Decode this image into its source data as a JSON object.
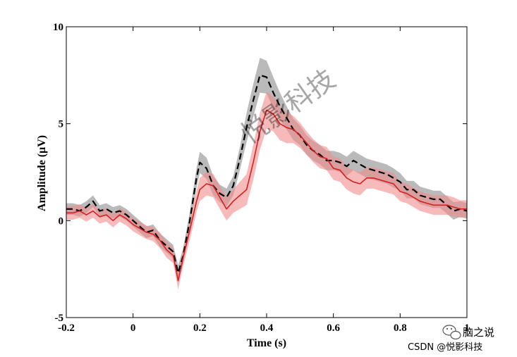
{
  "chart_data": {
    "type": "line",
    "xlabel": "Time (s)",
    "ylabel": "Amplitude (μV)",
    "xlim": [
      -0.2,
      1.0
    ],
    "ylim": [
      -5,
      10
    ],
    "xticks": [
      -0.2,
      0,
      0.2,
      0.4,
      0.6,
      0.8,
      1
    ],
    "xtick_labels": [
      "-0.2",
      "0",
      "0.2",
      "0.4",
      "0.6",
      "0.8",
      "1"
    ],
    "yticks": [
      -5,
      0,
      5,
      10
    ],
    "ytick_labels": [
      "-5",
      "0",
      "5",
      "10"
    ],
    "grid": false,
    "legend": "none",
    "series": [
      {
        "style": "dashed",
        "color": "#000000",
        "band_color": "#8c8c8c",
        "x": [
          -0.2,
          -0.18,
          -0.16,
          -0.14,
          -0.12,
          -0.1,
          -0.08,
          -0.06,
          -0.04,
          -0.02,
          0,
          0.02,
          0.04,
          0.06,
          0.08,
          0.1,
          0.12,
          0.135,
          0.15,
          0.17,
          0.19,
          0.2,
          0.22,
          0.24,
          0.26,
          0.28,
          0.3,
          0.32,
          0.34,
          0.36,
          0.38,
          0.4,
          0.42,
          0.44,
          0.46,
          0.48,
          0.5,
          0.52,
          0.54,
          0.56,
          0.58,
          0.6,
          0.62,
          0.64,
          0.66,
          0.68,
          0.7,
          0.72,
          0.74,
          0.76,
          0.78,
          0.8,
          0.82,
          0.84,
          0.86,
          0.88,
          0.9,
          0.92,
          0.94,
          0.96,
          0.98,
          1.0
        ],
        "y": [
          0.6,
          0.6,
          0.5,
          0.7,
          1.0,
          0.5,
          0.6,
          0.4,
          0.5,
          0.3,
          0.0,
          -0.3,
          -0.6,
          -0.5,
          -1.0,
          -1.3,
          -1.6,
          -2.7,
          -1.8,
          0.0,
          2.2,
          3.0,
          2.7,
          1.8,
          1.4,
          1.2,
          1.8,
          3.2,
          4.8,
          6.2,
          7.5,
          7.4,
          6.6,
          5.9,
          5.3,
          4.7,
          4.4,
          3.9,
          3.6,
          3.4,
          3.1,
          3.1,
          3.0,
          2.8,
          3.1,
          2.9,
          2.7,
          2.6,
          2.5,
          2.4,
          2.2,
          2.0,
          1.6,
          1.6,
          1.3,
          1.2,
          1.1,
          1.1,
          0.8,
          0.5,
          0.6,
          0.5
        ],
        "err": [
          0.3,
          0.3,
          0.3,
          0.3,
          0.3,
          0.3,
          0.3,
          0.3,
          0.3,
          0.3,
          0.3,
          0.3,
          0.3,
          0.3,
          0.35,
          0.35,
          0.35,
          0.4,
          0.4,
          0.45,
          0.5,
          0.55,
          0.55,
          0.5,
          0.45,
          0.45,
          0.5,
          0.6,
          0.75,
          0.85,
          0.9,
          0.85,
          0.8,
          0.7,
          0.6,
          0.55,
          0.5,
          0.5,
          0.5,
          0.5,
          0.5,
          0.5,
          0.5,
          0.5,
          0.5,
          0.5,
          0.5,
          0.5,
          0.5,
          0.5,
          0.5,
          0.45,
          0.45,
          0.45,
          0.45,
          0.45,
          0.45,
          0.45,
          0.45,
          0.45,
          0.4,
          0.4
        ]
      },
      {
        "style": "solid",
        "color": "#d62020",
        "band_color": "#f08c8c",
        "x": [
          -0.2,
          -0.18,
          -0.16,
          -0.14,
          -0.12,
          -0.1,
          -0.08,
          -0.06,
          -0.04,
          -0.02,
          0,
          0.02,
          0.04,
          0.06,
          0.08,
          0.1,
          0.12,
          0.135,
          0.15,
          0.17,
          0.19,
          0.2,
          0.22,
          0.24,
          0.26,
          0.28,
          0.3,
          0.32,
          0.34,
          0.36,
          0.38,
          0.4,
          0.42,
          0.44,
          0.46,
          0.48,
          0.5,
          0.52,
          0.54,
          0.56,
          0.58,
          0.6,
          0.62,
          0.64,
          0.66,
          0.68,
          0.7,
          0.72,
          0.74,
          0.76,
          0.78,
          0.8,
          0.82,
          0.84,
          0.86,
          0.88,
          0.9,
          0.92,
          0.94,
          0.96,
          0.98,
          1.0
        ],
        "y": [
          0.4,
          0.4,
          0.5,
          0.3,
          0.5,
          0.2,
          0.3,
          0.0,
          0.3,
          0.1,
          -0.2,
          -0.4,
          -0.6,
          -0.7,
          -1.0,
          -1.5,
          -1.8,
          -3.1,
          -1.9,
          -0.5,
          1.0,
          1.6,
          1.9,
          1.8,
          1.2,
          0.6,
          1.0,
          1.3,
          1.6,
          3.0,
          4.6,
          5.7,
          5.5,
          5.0,
          4.8,
          4.7,
          4.4,
          4.0,
          3.6,
          3.3,
          3.2,
          2.7,
          2.6,
          2.2,
          2.0,
          1.9,
          2.2,
          2.2,
          2.1,
          2.0,
          1.9,
          1.5,
          1.4,
          1.2,
          1.0,
          0.9,
          0.8,
          0.8,
          0.8,
          0.7,
          0.6,
          0.6
        ],
        "err": [
          0.35,
          0.35,
          0.35,
          0.35,
          0.35,
          0.35,
          0.35,
          0.35,
          0.35,
          0.35,
          0.35,
          0.35,
          0.35,
          0.35,
          0.4,
          0.4,
          0.4,
          0.45,
          0.45,
          0.5,
          0.55,
          0.6,
          0.6,
          0.6,
          0.6,
          0.6,
          0.6,
          0.7,
          0.8,
          0.9,
          0.95,
          0.95,
          0.9,
          0.85,
          0.8,
          0.7,
          0.65,
          0.6,
          0.6,
          0.6,
          0.6,
          0.6,
          0.6,
          0.6,
          0.6,
          0.6,
          0.55,
          0.55,
          0.55,
          0.55,
          0.55,
          0.5,
          0.5,
          0.5,
          0.5,
          0.5,
          0.5,
          0.5,
          0.5,
          0.5,
          0.45,
          0.45
        ]
      }
    ]
  },
  "watermark": {
    "diagonal_text": "悦影科技",
    "wechat_text": "脑之说",
    "csdn_text": "CSDN @悦影科技"
  }
}
